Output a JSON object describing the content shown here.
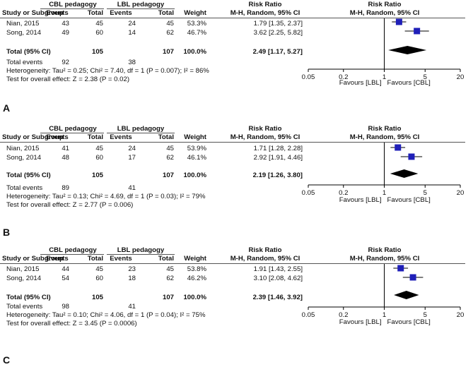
{
  "chart_data": [
    {
      "type": "forest",
      "panel_label": "A",
      "group1_title": "CBL pedagogy",
      "group2_title": "LBL pedagogy",
      "effect_title": "Risk Ratio",
      "effect_method": "M-H, Random, 95% CI",
      "plot_title": "Risk Ratio",
      "plot_method": "M-H, Random, 95% CI",
      "columns": [
        "Study or Subgroup",
        "Events",
        "Total",
        "Events",
        "Total",
        "Weight"
      ],
      "studies": [
        {
          "name": "Nian, 2015",
          "e1": "43",
          "n1": "45",
          "e2": "24",
          "n2": "45",
          "weight": "53.3%",
          "ci_text": "1.79 [1.35, 2.37]",
          "rr": 1.79,
          "lo": 1.35,
          "hi": 2.37
        },
        {
          "name": "Song, 2014",
          "e1": "49",
          "n1": "60",
          "e2": "14",
          "n2": "62",
          "weight": "46.7%",
          "ci_text": "3.62 [2.25, 5.82]",
          "rr": 3.62,
          "lo": 2.25,
          "hi": 5.82
        }
      ],
      "total": {
        "label": "Total (95% CI)",
        "n1": "105",
        "n2": "107",
        "weight": "100.0%",
        "ci_text": "2.49 [1.17, 5.27]",
        "rr": 2.49,
        "lo": 1.17,
        "hi": 5.27
      },
      "total_events": {
        "label": "Total events",
        "e1": "92",
        "e2": "38"
      },
      "heterogeneity": "Heterogeneity: Tau² = 0.25; Chi² = 7.40, df = 1 (P = 0.007); I² = 86%",
      "overall_effect": "Test for overall effect: Z = 2.38 (P = 0.02)",
      "axis": {
        "scale": "log",
        "ticks": [
          0.05,
          0.2,
          1,
          5,
          20
        ],
        "tick_labels": [
          "0.05",
          "0.2",
          "1",
          "5",
          "20"
        ],
        "min": 0.05,
        "max": 20
      },
      "favours_left": "Favours [LBL]",
      "favours_right": "Favours [CBL]"
    },
    {
      "type": "forest",
      "panel_label": "B",
      "group1_title": "CBL pedagogy",
      "group2_title": "LBL pedagogy",
      "effect_title": "Risk Ratio",
      "effect_method": "M-H, Random, 95% CI",
      "plot_title": "Risk Ratio",
      "plot_method": "M-H, Random, 95% CI",
      "columns": [
        "Study or Subgroup",
        "Events",
        "Total",
        "Events",
        "Total",
        "Weight"
      ],
      "studies": [
        {
          "name": "Nian, 2015",
          "e1": "41",
          "n1": "45",
          "e2": "24",
          "n2": "45",
          "weight": "53.9%",
          "ci_text": "1.71 [1.28, 2.28]",
          "rr": 1.71,
          "lo": 1.28,
          "hi": 2.28
        },
        {
          "name": "Song, 2014",
          "e1": "48",
          "n1": "60",
          "e2": "17",
          "n2": "62",
          "weight": "46.1%",
          "ci_text": "2.92 [1.91, 4.46]",
          "rr": 2.92,
          "lo": 1.91,
          "hi": 4.46
        }
      ],
      "total": {
        "label": "Total (95% CI)",
        "n1": "105",
        "n2": "107",
        "weight": "100.0%",
        "ci_text": "2.19 [1.26, 3.80]",
        "rr": 2.19,
        "lo": 1.26,
        "hi": 3.8
      },
      "total_events": {
        "label": "Total events",
        "e1": "89",
        "e2": "41"
      },
      "heterogeneity": "Heterogeneity: Tau² = 0.13; Chi² = 4.69, df = 1 (P = 0.03); I² = 79%",
      "overall_effect": "Test for overall effect: Z = 2.77 (P = 0.006)",
      "axis": {
        "scale": "log",
        "ticks": [
          0.05,
          0.2,
          1,
          5,
          20
        ],
        "tick_labels": [
          "0.05",
          "0.2",
          "1",
          "5",
          "20"
        ],
        "min": 0.05,
        "max": 20
      },
      "favours_left": "Favours [LBL]",
      "favours_right": "Favours [CBL]"
    },
    {
      "type": "forest",
      "panel_label": "C",
      "group1_title": "CBL pedagogy",
      "group2_title": "LBL pedagogy",
      "effect_title": "Risk Ratio",
      "effect_method": "M-H, Random, 95% CI",
      "plot_title": "Risk Ratio",
      "plot_method": "M-H, Random, 95% CI",
      "columns": [
        "Study or Subgroup",
        "Events",
        "Total",
        "Events",
        "Total",
        "Weight"
      ],
      "studies": [
        {
          "name": "Nian, 2015",
          "e1": "44",
          "n1": "45",
          "e2": "23",
          "n2": "45",
          "weight": "53.8%",
          "ci_text": "1.91 [1.43, 2.55]",
          "rr": 1.91,
          "lo": 1.43,
          "hi": 2.55
        },
        {
          "name": "Song, 2014",
          "e1": "54",
          "n1": "60",
          "e2": "18",
          "n2": "62",
          "weight": "46.2%",
          "ci_text": "3.10 [2.08, 4.62]",
          "rr": 3.1,
          "lo": 2.08,
          "hi": 4.62
        }
      ],
      "total": {
        "label": "Total (95% CI)",
        "n1": "105",
        "n2": "107",
        "weight": "100.0%",
        "ci_text": "2.39 [1.46, 3.92]",
        "rr": 2.39,
        "lo": 1.46,
        "hi": 3.92
      },
      "total_events": {
        "label": "Total events",
        "e1": "98",
        "e2": "41"
      },
      "heterogeneity": "Heterogeneity: Tau² = 0.10; Chi² = 4.06, df = 1 (P = 0.04); I² = 75%",
      "overall_effect": "Test for overall effect: Z = 3.45 (P = 0.0006)",
      "axis": {
        "scale": "log",
        "ticks": [
          0.05,
          0.2,
          1,
          5,
          20
        ],
        "tick_labels": [
          "0.05",
          "0.2",
          "1",
          "5",
          "20"
        ],
        "min": 0.05,
        "max": 20
      },
      "favours_left": "Favours [LBL]",
      "favours_right": "Favours [CBL]"
    }
  ]
}
